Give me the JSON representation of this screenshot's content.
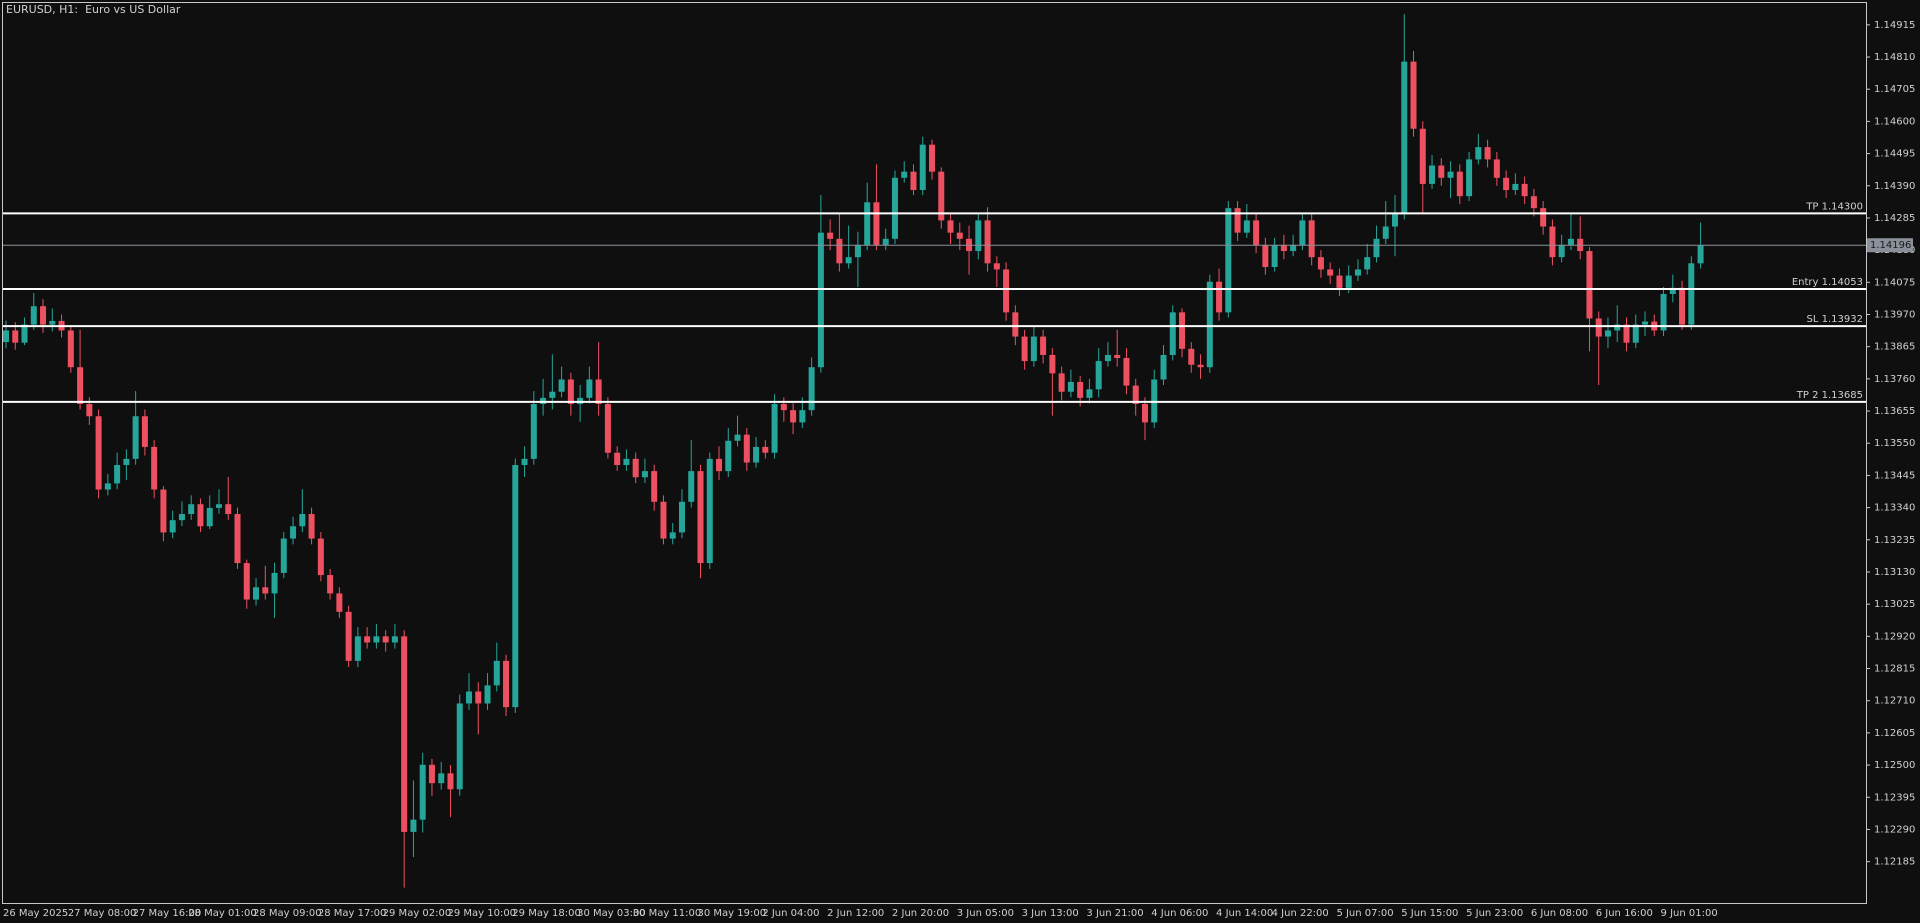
{
  "chart_data": {
    "type": "candlestick",
    "title": "EURUSD, H1:  Euro vs US Dollar",
    "up_color": "#26a69a",
    "down_color": "#ef5061",
    "level_color": "#ffffff",
    "last_price_color": "#8a8f99",
    "ylim": [
      1.1205,
      1.14983
    ],
    "yticks": [
      1.14915,
      {
        "value": 1.1481,
        "label": "1.14810"
      },
      1.14705,
      {
        "value": 1.146,
        "label": "1.14600"
      },
      1.14495,
      {
        "value": 1.1439,
        "label": "1.14390"
      },
      1.14285,
      {
        "value": 1.1418,
        "label": "1.14180"
      },
      1.14075,
      {
        "value": 1.1397,
        "label": "1.13970"
      },
      1.13865,
      {
        "value": 1.1376,
        "label": "1.13760"
      },
      1.13655,
      {
        "value": 1.1355,
        "label": "1.13550"
      },
      1.13445,
      {
        "value": 1.1334,
        "label": "1.13340"
      },
      1.13235,
      {
        "value": 1.1313,
        "label": "1.13130"
      },
      1.13025,
      {
        "value": 1.1292,
        "label": "1.12920"
      },
      1.12815,
      {
        "value": 1.1271,
        "label": "1.12710"
      },
      1.12605,
      {
        "value": 1.125,
        "label": "1.12500"
      },
      1.12395,
      {
        "value": 1.1229,
        "label": "1.12290"
      },
      1.12185
    ],
    "levels": [
      {
        "label": "TP 1.14300",
        "value": 1.143
      },
      {
        "label": "Entry 1.14053",
        "value": 1.14053
      },
      {
        "label": "SL 1.13932",
        "value": 1.13932
      },
      {
        "label": "TP 2 1.13685",
        "value": 1.13685
      }
    ],
    "last_price": {
      "value": 1.14196,
      "label": "1.14196"
    },
    "categories": [
      "26 May 2025",
      null,
      null,
      null,
      null,
      null,
      null,
      "27 May 08:00",
      null,
      null,
      null,
      null,
      null,
      null,
      "27 May 16:00",
      null,
      null,
      null,
      null,
      null,
      "28 May 01:00",
      null,
      null,
      null,
      null,
      null,
      null,
      "28 May 09:00",
      null,
      null,
      null,
      null,
      null,
      null,
      "28 May 17:00",
      null,
      null,
      null,
      null,
      null,
      null,
      "29 May 02:00",
      null,
      null,
      null,
      null,
      null,
      null,
      "29 May 10:00",
      null,
      null,
      null,
      null,
      null,
      null,
      "29 May 18:00",
      null,
      null,
      null,
      null,
      null,
      null,
      "30 May 03:00",
      null,
      null,
      null,
      null,
      null,
      "30 May 11:00",
      null,
      null,
      null,
      null,
      null,
      null,
      "30 May 19:00",
      null,
      null,
      null,
      null,
      null,
      null,
      "2 Jun 04:00",
      null,
      null,
      null,
      null,
      null,
      null,
      "2 Jun 12:00",
      null,
      null,
      null,
      null,
      null,
      null,
      "2 Jun 20:00",
      null,
      null,
      null,
      null,
      null,
      null,
      "3 Jun 05:00",
      null,
      null,
      null,
      null,
      null,
      null,
      "3 Jun 13:00",
      null,
      null,
      null,
      null,
      null,
      null,
      "3 Jun 21:00",
      null,
      null,
      null,
      null,
      null,
      null,
      "4 Jun 06:00",
      null,
      null,
      null,
      null,
      null,
      null,
      "4 Jun 14:00",
      null,
      null,
      null,
      null,
      null,
      "4 Jun 22:00",
      null,
      null,
      null,
      null,
      null,
      null,
      "5 Jun 07:00",
      null,
      null,
      null,
      null,
      null,
      null,
      "5 Jun 15:00",
      null,
      null,
      null,
      null,
      null,
      null,
      "5 Jun 23:00",
      null,
      null,
      null,
      null,
      null,
      null,
      "6 Jun 08:00",
      null,
      null,
      null,
      null,
      null,
      null,
      "6 Jun 16:00",
      null,
      null,
      null,
      null,
      null,
      null,
      "9 Jun 01:00",
      null,
      null,
      null,
      null
    ],
    "ohlc": [
      [
        1.1388,
        1.1395,
        1.1386,
        1.13918
      ],
      [
        1.13918,
        1.13945,
        1.13855,
        1.13878
      ],
      [
        1.13878,
        1.1396,
        1.1387,
        1.13937
      ],
      [
        1.13937,
        1.1404,
        1.1392,
        1.13997
      ],
      [
        1.13997,
        1.1402,
        1.1391,
        1.13937
      ],
      [
        1.13937,
        1.1399,
        1.13915,
        1.13949
      ],
      [
        1.13949,
        1.1397,
        1.13895,
        1.13918
      ],
      [
        1.13918,
        1.13935,
        1.1378,
        1.13798
      ],
      [
        1.13798,
        1.1392,
        1.1366,
        1.13678
      ],
      [
        1.13678,
        1.137,
        1.1361,
        1.13638
      ],
      [
        1.13638,
        1.1366,
        1.1337,
        1.13399
      ],
      [
        1.13399,
        1.1345,
        1.1338,
        1.13419
      ],
      [
        1.13419,
        1.1352,
        1.134,
        1.13479
      ],
      [
        1.13479,
        1.1353,
        1.1343,
        1.13499
      ],
      [
        1.13499,
        1.1372,
        1.1348,
        1.13638
      ],
      [
        1.13638,
        1.1366,
        1.1351,
        1.13538
      ],
      [
        1.13538,
        1.1356,
        1.1337,
        1.13399
      ],
      [
        1.13399,
        1.1341,
        1.1323,
        1.13259
      ],
      [
        1.13259,
        1.1333,
        1.1324,
        1.13299
      ],
      [
        1.13299,
        1.1336,
        1.1328,
        1.13319
      ],
      [
        1.13319,
        1.1338,
        1.133,
        1.13351
      ],
      [
        1.13351,
        1.1337,
        1.1326,
        1.13279
      ],
      [
        1.13279,
        1.1338,
        1.1327,
        1.13339
      ],
      [
        1.13339,
        1.134,
        1.1332,
        1.13351
      ],
      [
        1.13351,
        1.1344,
        1.133,
        1.13319
      ],
      [
        1.13319,
        1.1334,
        1.1314,
        1.13159
      ],
      [
        1.13159,
        1.1317,
        1.1301,
        1.1304
      ],
      [
        1.1304,
        1.1311,
        1.1302,
        1.1308
      ],
      [
        1.1308,
        1.1315,
        1.1304,
        1.1306
      ],
      [
        1.1306,
        1.1316,
        1.1298,
        1.13127
      ],
      [
        1.13127,
        1.1326,
        1.1311,
        1.13239
      ],
      [
        1.13239,
        1.1331,
        1.1322,
        1.13279
      ],
      [
        1.13279,
        1.134,
        1.1326,
        1.13319
      ],
      [
        1.13319,
        1.1334,
        1.1322,
        1.13239
      ],
      [
        1.13239,
        1.1326,
        1.131,
        1.1312
      ],
      [
        1.1312,
        1.1314,
        1.1304,
        1.1306
      ],
      [
        1.1306,
        1.1308,
        1.1298,
        1.13
      ],
      [
        1.13,
        1.1302,
        1.1282,
        1.1284
      ],
      [
        1.1284,
        1.1295,
        1.1282,
        1.1292
      ],
      [
        1.1292,
        1.1295,
        1.1288,
        1.129
      ],
      [
        1.129,
        1.1296,
        1.1288,
        1.1292
      ],
      [
        1.1292,
        1.1294,
        1.1287,
        1.129
      ],
      [
        1.129,
        1.1296,
        1.1288,
        1.1292
      ],
      [
        1.1292,
        1.1294,
        1.121,
        1.12282
      ],
      [
        1.12282,
        1.1245,
        1.122,
        1.12322
      ],
      [
        1.12322,
        1.1254,
        1.1228,
        1.12501
      ],
      [
        1.12501,
        1.1252,
        1.124,
        1.12441
      ],
      [
        1.12441,
        1.1251,
        1.1242,
        1.12473
      ],
      [
        1.12473,
        1.125,
        1.1233,
        1.12421
      ],
      [
        1.12421,
        1.1273,
        1.124,
        1.12701
      ],
      [
        1.12701,
        1.128,
        1.1268,
        1.1274
      ],
      [
        1.1274,
        1.1277,
        1.126,
        1.12701
      ],
      [
        1.12701,
        1.128,
        1.1268,
        1.1276
      ],
      [
        1.1276,
        1.129,
        1.1274,
        1.1284
      ],
      [
        1.1284,
        1.1286,
        1.1266,
        1.12689
      ],
      [
        1.12689,
        1.135,
        1.1267,
        1.13479
      ],
      [
        1.13479,
        1.1354,
        1.1344,
        1.13499
      ],
      [
        1.13499,
        1.1372,
        1.1348,
        1.13678
      ],
      [
        1.13678,
        1.1376,
        1.1364,
        1.13698
      ],
      [
        1.13698,
        1.1384,
        1.1366,
        1.13718
      ],
      [
        1.13718,
        1.138,
        1.137,
        1.13758
      ],
      [
        1.13758,
        1.1378,
        1.1364,
        1.13678
      ],
      [
        1.13678,
        1.1374,
        1.1362,
        1.13698
      ],
      [
        1.13698,
        1.138,
        1.1368,
        1.13758
      ],
      [
        1.13758,
        1.1388,
        1.1364,
        1.13678
      ],
      [
        1.13678,
        1.137,
        1.135,
        1.13519
      ],
      [
        1.13519,
        1.1354,
        1.1346,
        1.13479
      ],
      [
        1.13479,
        1.1353,
        1.1346,
        1.13499
      ],
      [
        1.13499,
        1.1352,
        1.1342,
        1.13439
      ],
      [
        1.13439,
        1.135,
        1.1342,
        1.13459
      ],
      [
        1.13459,
        1.1348,
        1.1333,
        1.13359
      ],
      [
        1.13359,
        1.1338,
        1.1322,
        1.13239
      ],
      [
        1.13239,
        1.1329,
        1.1322,
        1.13259
      ],
      [
        1.13259,
        1.134,
        1.1324,
        1.13359
      ],
      [
        1.13359,
        1.1356,
        1.1334,
        1.13459
      ],
      [
        1.13459,
        1.1348,
        1.1311,
        1.13159
      ],
      [
        1.13159,
        1.1352,
        1.1314,
        1.13499
      ],
      [
        1.13499,
        1.1354,
        1.1343,
        1.13459
      ],
      [
        1.13459,
        1.136,
        1.1344,
        1.13558
      ],
      [
        1.13558,
        1.1364,
        1.1354,
        1.13578
      ],
      [
        1.13578,
        1.136,
        1.1346,
        1.13487
      ],
      [
        1.13487,
        1.1357,
        1.1347,
        1.13538
      ],
      [
        1.13538,
        1.1356,
        1.135,
        1.13519
      ],
      [
        1.13519,
        1.1371,
        1.135,
        1.13678
      ],
      [
        1.13678,
        1.137,
        1.1362,
        1.13658
      ],
      [
        1.13658,
        1.1368,
        1.1358,
        1.13618
      ],
      [
        1.13618,
        1.137,
        1.136,
        1.13658
      ],
      [
        1.13658,
        1.1383,
        1.1364,
        1.13798
      ],
      [
        1.13798,
        1.1436,
        1.1378,
        1.14237
      ],
      [
        1.14237,
        1.1428,
        1.1418,
        1.14217
      ],
      [
        1.14217,
        1.143,
        1.1411,
        1.14137
      ],
      [
        1.14137,
        1.1426,
        1.1412,
        1.14157
      ],
      [
        1.14157,
        1.1424,
        1.1406,
        1.14197
      ],
      [
        1.14197,
        1.144,
        1.1418,
        1.14336
      ],
      [
        1.14336,
        1.1446,
        1.1418,
        1.14197
      ],
      [
        1.14197,
        1.1425,
        1.1418,
        1.14217
      ],
      [
        1.14217,
        1.1444,
        1.142,
        1.14416
      ],
      [
        1.14416,
        1.1447,
        1.144,
        1.14436
      ],
      [
        1.14436,
        1.1446,
        1.1436,
        1.14376
      ],
      [
        1.14376,
        1.1455,
        1.1436,
        1.14524
      ],
      [
        1.14524,
        1.1454,
        1.1441,
        1.14436
      ],
      [
        1.14436,
        1.1445,
        1.1425,
        1.14277
      ],
      [
        1.14277,
        1.143,
        1.142,
        1.14237
      ],
      [
        1.14237,
        1.1427,
        1.1418,
        1.14217
      ],
      [
        1.14217,
        1.1426,
        1.141,
        1.14177
      ],
      [
        1.14177,
        1.143,
        1.1415,
        1.14277
      ],
      [
        1.14277,
        1.1432,
        1.1411,
        1.14137
      ],
      [
        1.14137,
        1.1416,
        1.1406,
        1.14117
      ],
      [
        1.14117,
        1.1414,
        1.1395,
        1.13977
      ],
      [
        1.13977,
        1.14,
        1.1387,
        1.13898
      ],
      [
        1.13898,
        1.1392,
        1.1379,
        1.13818
      ],
      [
        1.13818,
        1.1393,
        1.138,
        1.13898
      ],
      [
        1.13898,
        1.1392,
        1.1381,
        1.13838
      ],
      [
        1.13838,
        1.1386,
        1.1364,
        1.13778
      ],
      [
        1.13778,
        1.138,
        1.1369,
        1.13718
      ],
      [
        1.13718,
        1.1379,
        1.137,
        1.1375
      ],
      [
        1.1375,
        1.1377,
        1.1367,
        1.13698
      ],
      [
        1.13698,
        1.1376,
        1.1368,
        1.13726
      ],
      [
        1.13726,
        1.1386,
        1.137,
        1.13818
      ],
      [
        1.13818,
        1.1388,
        1.138,
        1.13838
      ],
      [
        1.13838,
        1.1392,
        1.138,
        1.13828
      ],
      [
        1.13828,
        1.1386,
        1.1371,
        1.13738
      ],
      [
        1.13738,
        1.1376,
        1.1364,
        1.13678
      ],
      [
        1.13678,
        1.137,
        1.1356,
        1.13618
      ],
      [
        1.13618,
        1.1379,
        1.136,
        1.13758
      ],
      [
        1.13758,
        1.1387,
        1.1374,
        1.13838
      ],
      [
        1.13838,
        1.14,
        1.1382,
        1.13977
      ],
      [
        1.13977,
        1.1399,
        1.1383,
        1.13858
      ],
      [
        1.13858,
        1.1388,
        1.1378,
        1.13806
      ],
      [
        1.13806,
        1.1384,
        1.1376,
        1.13798
      ],
      [
        1.13798,
        1.141,
        1.1378,
        1.14077
      ],
      [
        1.14077,
        1.1412,
        1.1395,
        1.13977
      ],
      [
        1.13977,
        1.1434,
        1.1396,
        1.14317
      ],
      [
        1.14317,
        1.1434,
        1.1421,
        1.14237
      ],
      [
        1.14237,
        1.1433,
        1.1422,
        1.14277
      ],
      [
        1.14277,
        1.143,
        1.1417,
        1.14197
      ],
      [
        1.14197,
        1.1422,
        1.141,
        1.14125
      ],
      [
        1.14125,
        1.1422,
        1.1411,
        1.14197
      ],
      [
        1.14197,
        1.1423,
        1.1415,
        1.14177
      ],
      [
        1.14177,
        1.1423,
        1.1416,
        1.14197
      ],
      [
        1.14197,
        1.143,
        1.1418,
        1.14277
      ],
      [
        1.14277,
        1.143,
        1.1413,
        1.14157
      ],
      [
        1.14157,
        1.1418,
        1.1409,
        1.14117
      ],
      [
        1.14117,
        1.1414,
        1.1407,
        1.14097
      ],
      [
        1.14097,
        1.1412,
        1.1403,
        1.14057
      ],
      [
        1.14057,
        1.1413,
        1.1404,
        1.14097
      ],
      [
        1.14097,
        1.1415,
        1.1408,
        1.14117
      ],
      [
        1.14117,
        1.142,
        1.141,
        1.14157
      ],
      [
        1.14157,
        1.1426,
        1.1414,
        1.14217
      ],
      [
        1.14217,
        1.1434,
        1.142,
        1.14257
      ],
      [
        1.14257,
        1.1436,
        1.1416,
        1.14297
      ],
      [
        1.14297,
        1.1495,
        1.1428,
        1.14795
      ],
      [
        1.14795,
        1.1483,
        1.1455,
        1.14576
      ],
      [
        1.14576,
        1.146,
        1.143,
        1.14396
      ],
      [
        1.14396,
        1.1449,
        1.1438,
        1.14456
      ],
      [
        1.14456,
        1.1448,
        1.1439,
        1.14416
      ],
      [
        1.14416,
        1.1447,
        1.1435,
        1.14436
      ],
      [
        1.14436,
        1.1446,
        1.1433,
        1.14356
      ],
      [
        1.14356,
        1.145,
        1.1434,
        1.14476
      ],
      [
        1.14476,
        1.1456,
        1.1446,
        1.14516
      ],
      [
        1.14516,
        1.1454,
        1.1445,
        1.14476
      ],
      [
        1.14476,
        1.145,
        1.1439,
        1.14416
      ],
      [
        1.14416,
        1.1444,
        1.1435,
        1.14376
      ],
      [
        1.14376,
        1.1443,
        1.1436,
        1.14396
      ],
      [
        1.14396,
        1.1442,
        1.1433,
        1.14356
      ],
      [
        1.14356,
        1.1438,
        1.1429,
        1.14317
      ],
      [
        1.14317,
        1.1434,
        1.1423,
        1.14257
      ],
      [
        1.14257,
        1.1428,
        1.1413,
        1.14157
      ],
      [
        1.14157,
        1.1423,
        1.1414,
        1.14197
      ],
      [
        1.14197,
        1.143,
        1.1418,
        1.14217
      ],
      [
        1.14217,
        1.1429,
        1.1415,
        1.14177
      ],
      [
        1.14177,
        1.1419,
        1.1385,
        1.13957
      ],
      [
        1.13957,
        1.1398,
        1.1374,
        1.13898
      ],
      [
        1.13898,
        1.1396,
        1.1386,
        1.13918
      ],
      [
        1.13918,
        1.14,
        1.1388,
        1.13937
      ],
      [
        1.13937,
        1.1396,
        1.1385,
        1.13878
      ],
      [
        1.13878,
        1.1397,
        1.1386,
        1.13937
      ],
      [
        1.13937,
        1.1398,
        1.139,
        1.13947
      ],
      [
        1.13947,
        1.1397,
        1.139,
        1.13918
      ],
      [
        1.13918,
        1.1406,
        1.139,
        1.14037
      ],
      [
        1.14037,
        1.141,
        1.1401,
        1.14057
      ],
      [
        1.14057,
        1.1408,
        1.1392,
        1.13937
      ],
      [
        1.13937,
        1.1416,
        1.1392,
        1.14137
      ],
      [
        1.14137,
        1.1427,
        1.1412,
        1.14196
      ]
    ]
  }
}
